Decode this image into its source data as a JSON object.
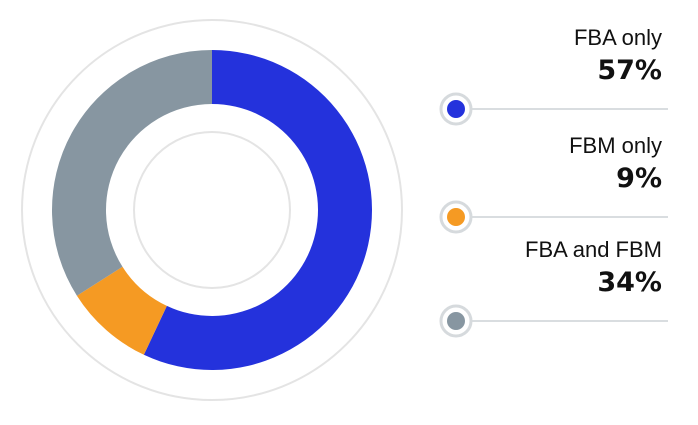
{
  "chart_data": {
    "type": "pie",
    "variant": "donut",
    "categories": [
      "FBA only",
      "FBM only",
      "FBA and FBM"
    ],
    "values": [
      57,
      9,
      34
    ],
    "value_labels": [
      "57%",
      "9%",
      "34%"
    ],
    "unit": "%",
    "colors": [
      "#2432dc",
      "#f59a23",
      "#8796a1"
    ],
    "legend_position": "right"
  }
}
